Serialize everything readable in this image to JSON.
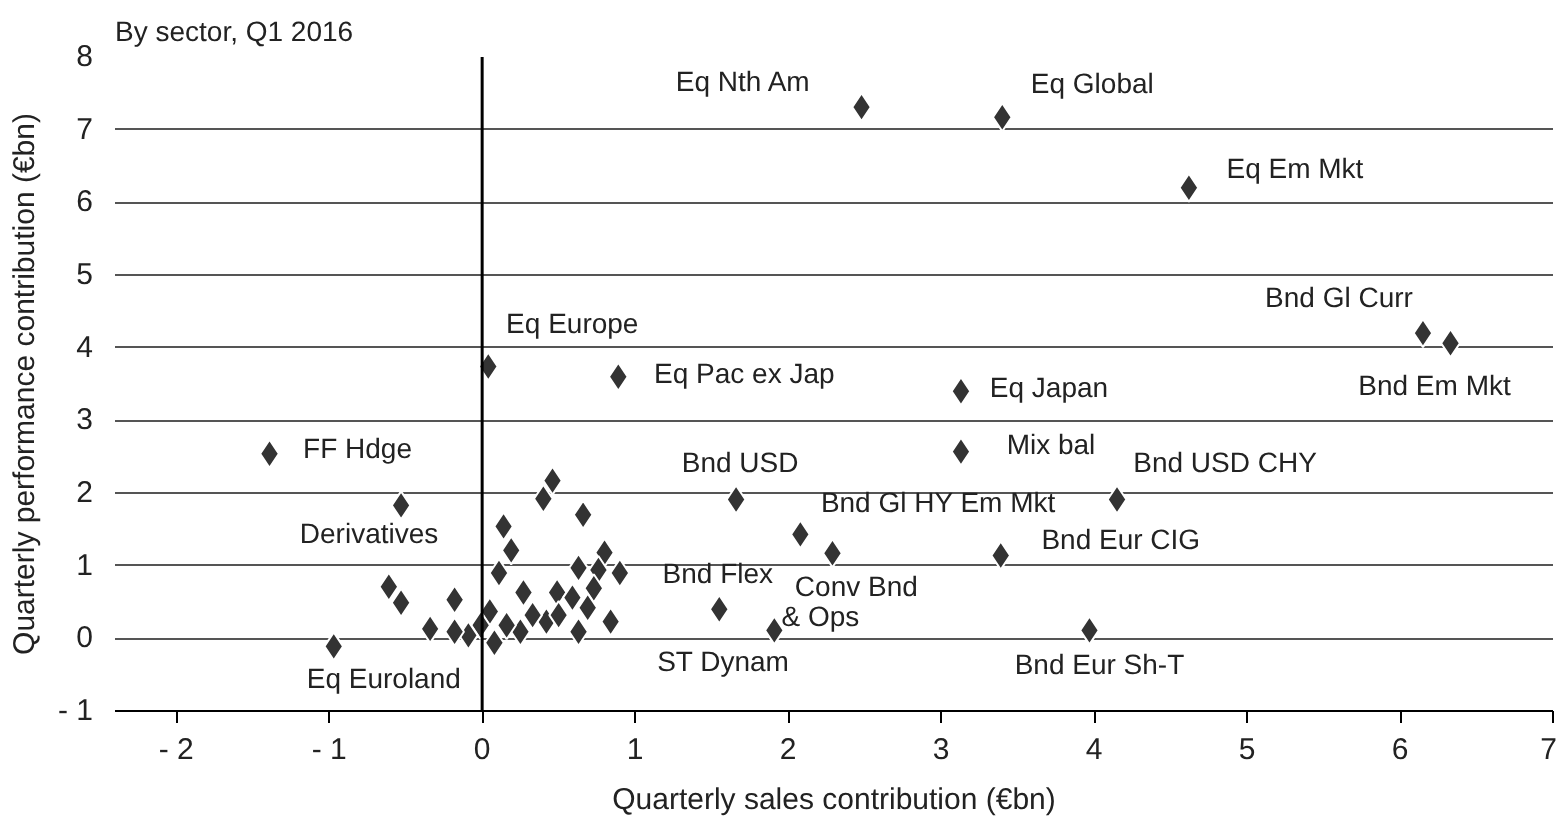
{
  "chart_data": {
    "type": "scatter",
    "title": "By sector, Q1 2016",
    "xlabel": "Quarterly sales contribution (€bn)",
    "ylabel": "Quarterly performance contribution (€bn)",
    "series": [
      {
        "color": "#333333",
        "x": [
          2.48,
          3.4,
          4.62,
          6.15,
          6.33,
          3.13,
          3.13,
          4.15,
          2.08,
          2.29,
          1.91,
          1.55,
          3.39,
          3.97,
          1.66,
          0.04,
          0.89,
          -1.39,
          -0.53,
          -0.97,
          0.46,
          0.4,
          0.66,
          0.14,
          0.19,
          0.11,
          0.8,
          0.63,
          0.76,
          0.9,
          -0.61,
          -0.53,
          -0.18,
          -0.34,
          0.27,
          0.49,
          0.73,
          0.59,
          0.69,
          0.84,
          0.42,
          0.25,
          0.63,
          0.05,
          -0.01,
          -0.09,
          0.08,
          -0.18,
          0.16,
          0.33,
          0.5
        ],
        "values": [
          7.31,
          7.17,
          6.2,
          4.2,
          4.06,
          3.4,
          2.57,
          1.91,
          1.43,
          1.17,
          0.11,
          0.4,
          1.14,
          0.11,
          1.91,
          3.74,
          3.6,
          2.54,
          1.83,
          -0.11,
          2.17,
          1.92,
          1.7,
          1.54,
          1.21,
          0.9,
          1.18,
          0.97,
          0.94,
          0.9,
          0.71,
          0.49,
          0.53,
          0.13,
          0.63,
          0.63,
          0.69,
          0.56,
          0.42,
          0.23,
          0.23,
          0.09,
          0.09,
          0.37,
          0.18,
          0.04,
          -0.06,
          0.09,
          0.18,
          0.32,
          0.32
        ]
      }
    ],
    "marker": "diamond",
    "xlim": [
      -2.4,
      7
    ],
    "ylim": [
      -1,
      8
    ],
    "xticks": [
      -2,
      -1,
      0,
      1,
      2,
      3,
      4,
      5,
      6,
      7
    ],
    "yticks": [
      -1,
      0,
      1,
      2,
      3,
      4,
      5,
      6,
      7,
      8
    ],
    "grid": "y",
    "ref_lines": [
      {
        "axis": "x",
        "value": 0,
        "color": "#000000"
      }
    ],
    "annotations": [
      {
        "text": "Eq Nth Am",
        "x": 2.48,
        "y": 7.31
      },
      {
        "text": "Eq Global",
        "x": 3.4,
        "y": 7.17
      },
      {
        "text": "Eq Em Mkt",
        "x": 4.62,
        "y": 6.2
      },
      {
        "text": "Bnd Gl Curr",
        "x": 6.15,
        "y": 4.2
      },
      {
        "text": "Bnd Em Mkt",
        "x": 6.33,
        "y": 4.06
      },
      {
        "text": "Eq Europe",
        "x": 0.04,
        "y": 3.74
      },
      {
        "text": "Eq Pac ex Jap",
        "x": 0.89,
        "y": 3.6
      },
      {
        "text": "Eq Japan",
        "x": 3.13,
        "y": 3.4
      },
      {
        "text": "Mix bal",
        "x": 3.13,
        "y": 2.57
      },
      {
        "text": "Bnd USD",
        "x": 1.66,
        "y": 1.91
      },
      {
        "text": "Bnd USD CHY",
        "x": 4.15,
        "y": 1.91
      },
      {
        "text": "Bnd Gl HY Em Mkt",
        "x": 2.08,
        "y": 1.43
      },
      {
        "text": "Bnd Eur CIG",
        "x": 3.39,
        "y": 1.14
      },
      {
        "text": "Bnd Flex",
        "x": 0.9,
        "y": 0.9
      },
      {
        "text": "Conv Bnd",
        "x": 1.91,
        "y": 0.11
      },
      {
        "text": "& Ops",
        "x": 1.91,
        "y": 0.11
      },
      {
        "text": "ST Dynam",
        "x": 1.55,
        "y": 0.4
      },
      {
        "text": "Bnd Eur Sh-T",
        "x": 3.97,
        "y": 0.11
      },
      {
        "text": "FF Hdge",
        "x": -1.39,
        "y": 2.54
      },
      {
        "text": "Derivatives",
        "x": -0.53,
        "y": 1.83
      },
      {
        "text": "Eq Euroland",
        "x": -0.97,
        "y": -0.11
      }
    ]
  }
}
